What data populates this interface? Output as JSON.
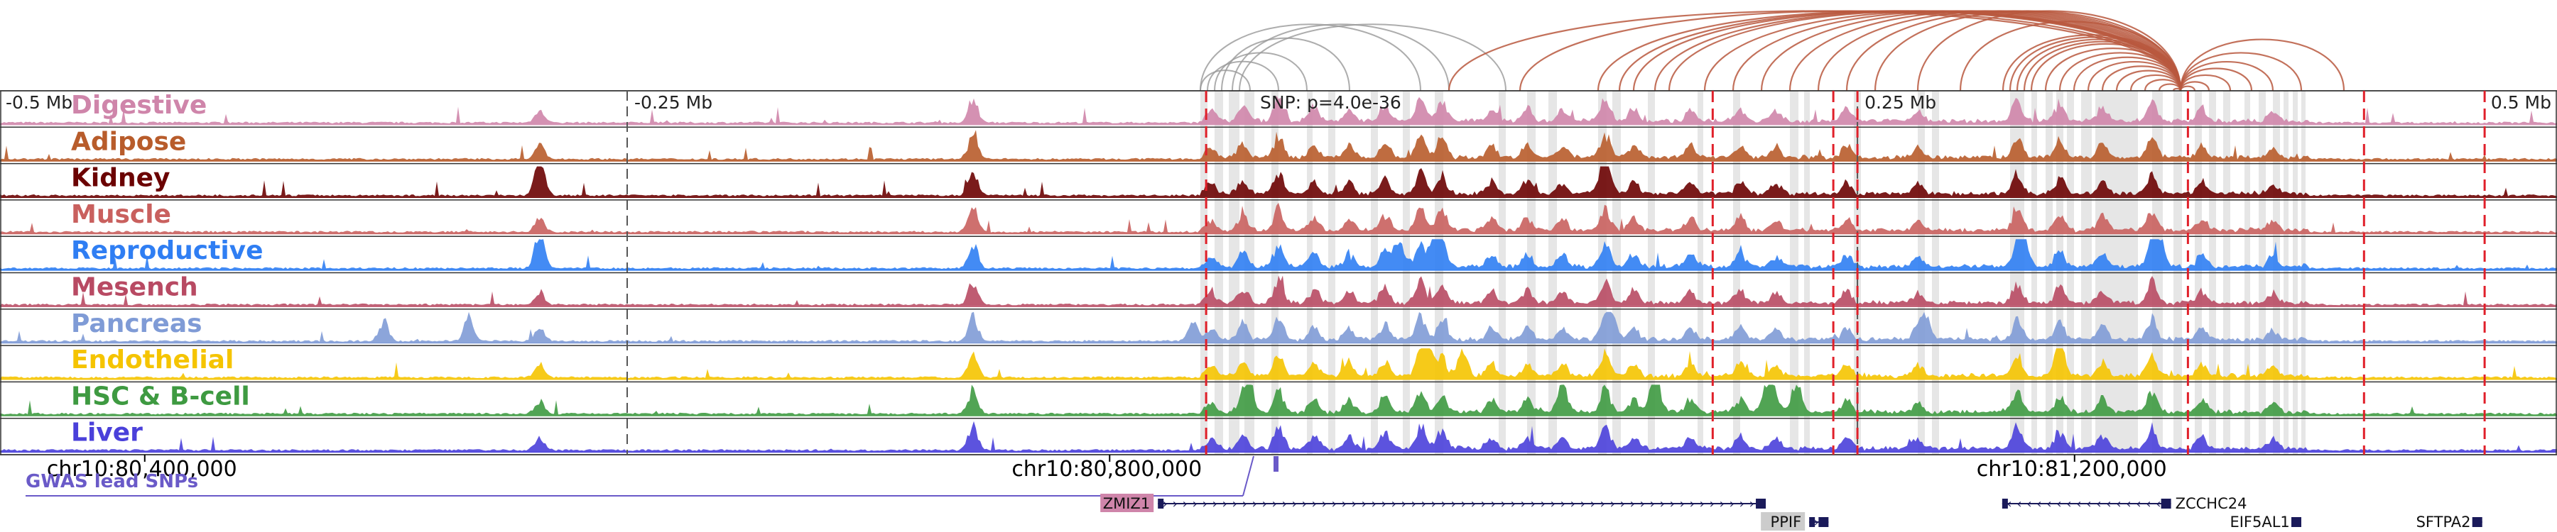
{
  "chart_data": {
    "type": "area",
    "title": "",
    "region": {
      "chrom": "chr10",
      "start": 80340000,
      "end": 81400000
    },
    "offset_axis": {
      "ticks": [
        {
          "label": "-0.5 Mb",
          "pos": 80340000
        },
        {
          "label": "-0.25 Mb",
          "pos": 80600000
        },
        {
          "label": "0.25 Mb",
          "pos": 81110000
        },
        {
          "label": "0.5 Mb",
          "pos": 81370000
        }
      ],
      "center_label": "SNP: p=4.0e-36",
      "center_pos": 80860000
    },
    "coordinate_ticks": [
      {
        "label": "chr10:80,400,000",
        "pos": 80400000
      },
      {
        "label": "chr10:80,800,000",
        "pos": 80800000
      },
      {
        "label": "chr10:81,200,000",
        "pos": 81200000
      }
    ],
    "series": [
      {
        "name": "Digestive",
        "color": "#cf85aa"
      },
      {
        "name": "Adipose",
        "color": "#b85c2b"
      },
      {
        "name": "Kidney",
        "color": "#6b0202"
      },
      {
        "name": "Muscle",
        "color": "#c9605e"
      },
      {
        "name": "Reproductive",
        "color": "#2f7ef3"
      },
      {
        "name": "Mesench",
        "color": "#b84a63"
      },
      {
        "name": "Pancreas",
        "color": "#7f9bd6"
      },
      {
        "name": "Endothelial",
        "color": "#f5c400"
      },
      {
        "name": "HSC & B-cell",
        "color": "#3e9a41"
      },
      {
        "name": "Liver",
        "color": "#4a40da"
      }
    ],
    "snp_lines": [
      80840000,
      81050000,
      81100000,
      81110000,
      81247000,
      81320000,
      81370000
    ],
    "gwas_track": {
      "label": "GWAS lead SNPs",
      "color": "#6a5ac8"
    },
    "genes": [
      {
        "name": "ZMIZ1",
        "start": 80820000,
        "end": 81072000,
        "strand": "+",
        "label_boxed": true,
        "box_color": "#cf85aa"
      },
      {
        "name": "PPIF",
        "start": 81090000,
        "end": 81098000,
        "strand": "+",
        "label_boxed": true,
        "box_color": "#cccccc"
      },
      {
        "name": "ZCCHC24",
        "start": 81170000,
        "end": 81240000,
        "strand": "-",
        "label_boxed": false
      },
      {
        "name": "EIF5AL1",
        "start": 81291000,
        "end": 81294000,
        "strand": "+",
        "label_boxed": false
      },
      {
        "name": "SFTPA2",
        "start": 81366000,
        "end": 81369000,
        "strand": "+",
        "label_boxed": false
      }
    ],
    "loops_color_gray": "#999999",
    "loops_color_main": "#b8583e"
  }
}
